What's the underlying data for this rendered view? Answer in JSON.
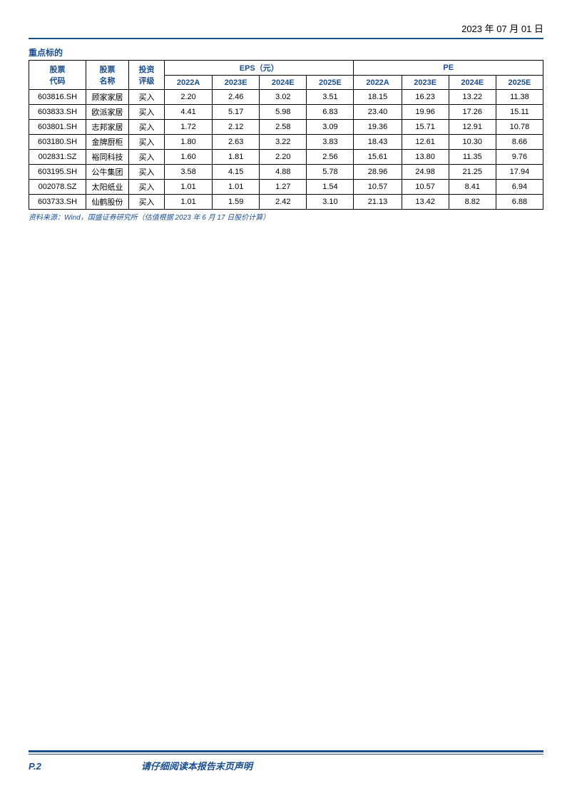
{
  "header": {
    "date": "2023 年 07 月 01 日"
  },
  "section_title": "重点标的",
  "table": {
    "headers": {
      "code": "股票\n代码",
      "name": "股票\n名称",
      "rating": "投资\n评级",
      "eps_group": "EPS（元）",
      "pe_group": "PE",
      "periods": [
        "2022A",
        "2023E",
        "2024E",
        "2025E"
      ]
    },
    "rows": [
      {
        "code": "603816.SH",
        "name": "顾家家居",
        "rating": "买入",
        "eps": [
          "2.20",
          "2.46",
          "3.02",
          "3.51"
        ],
        "pe": [
          "18.15",
          "16.23",
          "13.22",
          "11.38"
        ]
      },
      {
        "code": "603833.SH",
        "name": "欧派家居",
        "rating": "买入",
        "eps": [
          "4.41",
          "5.17",
          "5.98",
          "6.83"
        ],
        "pe": [
          "23.40",
          "19.96",
          "17.26",
          "15.11"
        ]
      },
      {
        "code": "603801.SH",
        "name": "志邦家居",
        "rating": "买入",
        "eps": [
          "1.72",
          "2.12",
          "2.58",
          "3.09"
        ],
        "pe": [
          "19.36",
          "15.71",
          "12.91",
          "10.78"
        ]
      },
      {
        "code": "603180.SH",
        "name": "金牌厨柜",
        "rating": "买入",
        "eps": [
          "1.80",
          "2.63",
          "3.22",
          "3.83"
        ],
        "pe": [
          "18.43",
          "12.61",
          "10.30",
          "8.66"
        ]
      },
      {
        "code": "002831.SZ",
        "name": "裕同科技",
        "rating": "买入",
        "eps": [
          "1.60",
          "1.81",
          "2.20",
          "2.56"
        ],
        "pe": [
          "15.61",
          "13.80",
          "11.35",
          "9.76"
        ]
      },
      {
        "code": "603195.SH",
        "name": "公牛集团",
        "rating": "买入",
        "eps": [
          "3.58",
          "4.15",
          "4.88",
          "5.78"
        ],
        "pe": [
          "28.96",
          "24.98",
          "21.25",
          "17.94"
        ]
      },
      {
        "code": "002078.SZ",
        "name": "太阳纸业",
        "rating": "买入",
        "eps": [
          "1.01",
          "1.01",
          "1.27",
          "1.54"
        ],
        "pe": [
          "10.57",
          "10.57",
          "8.41",
          "6.94"
        ]
      },
      {
        "code": "603733.SH",
        "name": "仙鹤股份",
        "rating": "买入",
        "eps": [
          "1.01",
          "1.59",
          "2.42",
          "3.10"
        ],
        "pe": [
          "21.13",
          "13.42",
          "8.82",
          "6.88"
        ]
      }
    ]
  },
  "source_note": "资料来源：Wind，国盛证券研究所（估值根据 2023 年 6 月 17 日股价计算）",
  "footer": {
    "page_number": "P.2",
    "disclaimer": "请仔细阅读本报告末页声明"
  }
}
